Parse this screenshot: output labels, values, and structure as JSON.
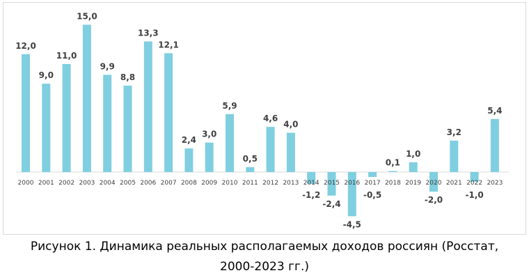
{
  "chart_data": {
    "type": "bar",
    "categories": [
      "2000",
      "2001",
      "2002",
      "2003",
      "2004",
      "2005",
      "2006",
      "2007",
      "2008",
      "2009",
      "2010",
      "2011",
      "2012",
      "2013",
      "2014",
      "2015",
      "2016",
      "2017",
      "2018",
      "2019",
      "2020",
      "2021",
      "2022",
      "2023"
    ],
    "values": [
      12.0,
      9.0,
      11.0,
      15.0,
      9.9,
      8.8,
      13.3,
      12.1,
      2.4,
      3.0,
      5.9,
      0.5,
      4.6,
      4.0,
      -1.2,
      -2.4,
      -4.5,
      -0.5,
      0.1,
      1.0,
      -2.0,
      3.2,
      -1.0,
      5.4
    ],
    "value_labels": [
      "12,0",
      "9,0",
      "11,0",
      "15,0",
      "9,9",
      "8,8",
      "13,3",
      "12,1",
      "2,4",
      "3,0",
      "5,9",
      "0,5",
      "4,6",
      "4,0",
      "-1,2",
      "-2,4",
      "-4,5",
      "-0,5",
      "0,1",
      "1,0",
      "-2,0",
      "3,2",
      "-1,0",
      "5,4"
    ],
    "title": "",
    "xlabel": "",
    "ylabel": "",
    "ylim": [
      -4.5,
      15
    ],
    "grid": false,
    "legend": "none",
    "bar_color": "#7fcfe0"
  },
  "caption": {
    "line1": "Рисунок 1. Динамика реальных располагаемых доходов россиян (Росстат,",
    "line2": "2000-2023 гг.)"
  }
}
